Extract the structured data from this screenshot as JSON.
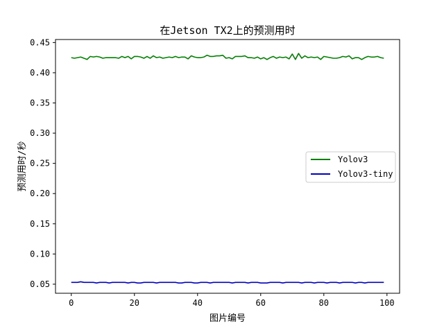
{
  "chart_data": {
    "type": "line",
    "title": "在Jetson TX2上的预测用时",
    "xlabel": "图片编号",
    "ylabel": "预测用时/秒",
    "xlim": [
      -5,
      104
    ],
    "ylim": [
      0.035,
      0.455
    ],
    "xticks": [
      0,
      20,
      40,
      60,
      80,
      100
    ],
    "yticks": [
      0.05,
      0.1,
      0.15,
      0.2,
      0.25,
      0.3,
      0.35,
      0.4,
      0.45
    ],
    "ytick_labels": [
      "0.05",
      "0.10",
      "0.15",
      "0.20",
      "0.25",
      "0.30",
      "0.35",
      "0.40",
      "0.45"
    ],
    "grid": false,
    "legend_position": "center-right",
    "series": [
      {
        "name": "Yolov3",
        "color": "#008000",
        "values": [
          0.425,
          0.424,
          0.425,
          0.426,
          0.424,
          0.422,
          0.427,
          0.426,
          0.427,
          0.426,
          0.424,
          0.425,
          0.425,
          0.425,
          0.425,
          0.424,
          0.427,
          0.425,
          0.427,
          0.423,
          0.427,
          0.427,
          0.426,
          0.424,
          0.427,
          0.424,
          0.428,
          0.425,
          0.426,
          0.424,
          0.425,
          0.426,
          0.425,
          0.427,
          0.425,
          0.426,
          0.426,
          0.423,
          0.428,
          0.426,
          0.425,
          0.425,
          0.426,
          0.429,
          0.427,
          0.427,
          0.428,
          0.428,
          0.429,
          0.424,
          0.425,
          0.423,
          0.427,
          0.427,
          0.427,
          0.428,
          0.425,
          0.425,
          0.424,
          0.426,
          0.423,
          0.425,
          0.422,
          0.425,
          0.427,
          0.424,
          0.426,
          0.425,
          0.426,
          0.423,
          0.431,
          0.422,
          0.432,
          0.424,
          0.428,
          0.425,
          0.426,
          0.425,
          0.426,
          0.422,
          0.427,
          0.426,
          0.425,
          0.424,
          0.424,
          0.425,
          0.427,
          0.426,
          0.428,
          0.423,
          0.425,
          0.425,
          0.422,
          0.425,
          0.427,
          0.426,
          0.426,
          0.427,
          0.425,
          0.424
        ]
      },
      {
        "name": "Yolov3-tiny",
        "color": "#0000bb",
        "values": [
          0.053,
          0.053,
          0.053,
          0.054,
          0.053,
          0.053,
          0.053,
          0.053,
          0.052,
          0.053,
          0.053,
          0.053,
          0.052,
          0.053,
          0.053,
          0.053,
          0.053,
          0.053,
          0.052,
          0.053,
          0.053,
          0.052,
          0.052,
          0.053,
          0.053,
          0.053,
          0.053,
          0.052,
          0.053,
          0.053,
          0.053,
          0.053,
          0.053,
          0.053,
          0.052,
          0.052,
          0.053,
          0.053,
          0.053,
          0.052,
          0.052,
          0.053,
          0.053,
          0.053,
          0.052,
          0.053,
          0.053,
          0.053,
          0.053,
          0.053,
          0.053,
          0.052,
          0.053,
          0.053,
          0.053,
          0.053,
          0.052,
          0.053,
          0.053,
          0.053,
          0.052,
          0.052,
          0.052,
          0.053,
          0.053,
          0.053,
          0.053,
          0.052,
          0.053,
          0.053,
          0.053,
          0.053,
          0.053,
          0.052,
          0.053,
          0.053,
          0.053,
          0.052,
          0.053,
          0.053,
          0.053,
          0.052,
          0.053,
          0.053,
          0.053,
          0.052,
          0.053,
          0.053,
          0.053,
          0.053,
          0.052,
          0.053,
          0.053,
          0.052,
          0.053,
          0.053,
          0.053,
          0.053,
          0.053,
          0.053
        ]
      }
    ]
  }
}
